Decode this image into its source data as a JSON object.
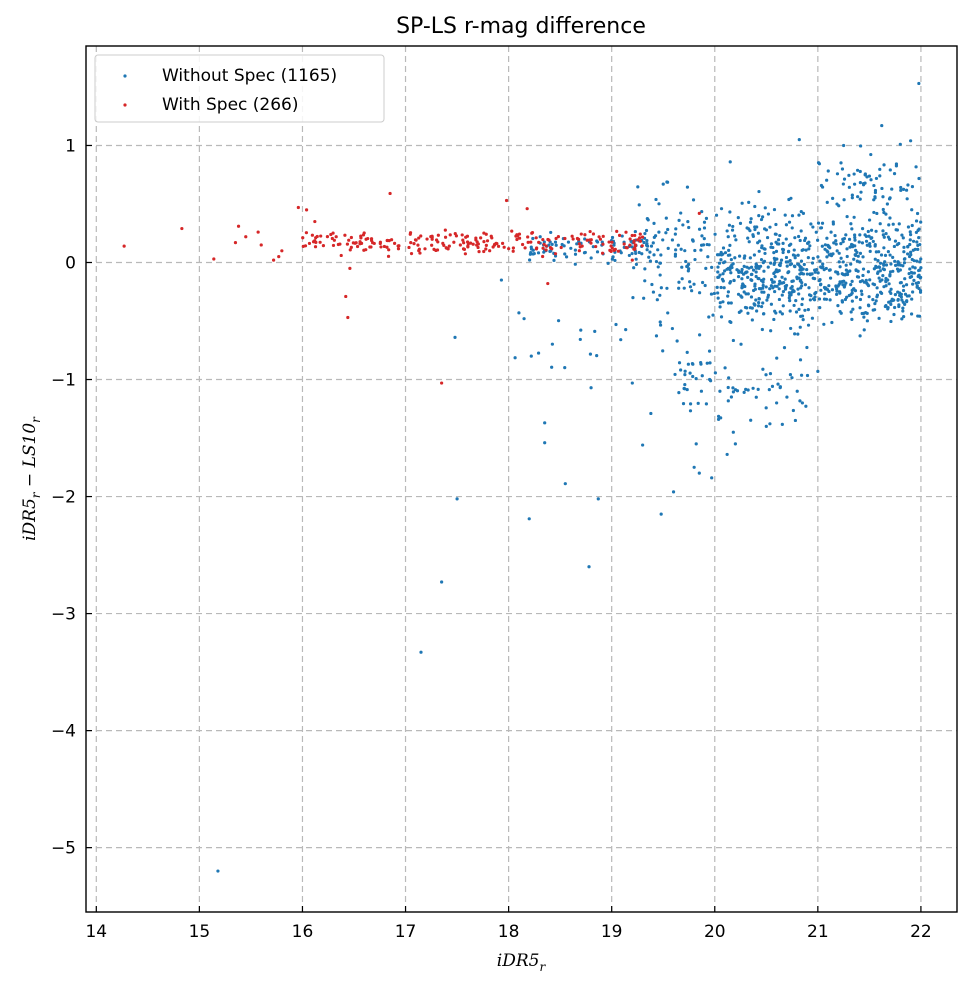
{
  "chart_data": {
    "type": "scatter",
    "title": "SP-LS r-mag difference",
    "xlabel": "iDR5",
    "xlabel_sub": "r",
    "ylabel": "iDR5",
    "ylabel_sub": "r",
    "ylabel_op": " − LS10",
    "ylabel_sub2": "r",
    "xlim": [
      13.9,
      22.35
    ],
    "ylim": [
      -5.55,
      1.85
    ],
    "xticks": [
      14,
      15,
      16,
      17,
      18,
      19,
      20,
      21,
      22
    ],
    "yticks": [
      1,
      0,
      -1,
      -2,
      -3,
      -4,
      -5
    ],
    "ytick_labels": [
      "1",
      "0",
      "−1",
      "−2",
      "−3",
      "−4",
      "−5"
    ],
    "grid": true,
    "legend_position": "top-left",
    "series": [
      {
        "name": "Without Spec (1165)",
        "color": "#1f77b4",
        "clusters": [
          {
            "xrange": [
              19.2,
              22.0
            ],
            "yrange": [
              -0.7,
              0.8
            ],
            "count": 380
          },
          {
            "xrange": [
              20.0,
              22.0
            ],
            "yrange": [
              -0.75,
              0.6
            ],
            "count": 520
          },
          {
            "xrange": [
              18.2,
              19.4
            ],
            "yrange": [
              -0.05,
              0.3
            ],
            "count": 90
          },
          {
            "xrange": [
              21.0,
              22.0
            ],
            "yrange": [
              0.3,
              1.05
            ],
            "count": 60
          },
          {
            "xrange": [
              19.6,
              20.9
            ],
            "yrange": [
              -1.6,
              -0.5
            ],
            "count": 75
          },
          {
            "xrange": [
              18.0,
              20.0
            ],
            "yrange": [
              -1.2,
              -0.3
            ],
            "count": 20
          }
        ],
        "points": [
          {
            "x": 15.18,
            "y": -5.2
          },
          {
            "x": 17.15,
            "y": -3.33
          },
          {
            "x": 17.35,
            "y": -2.73
          },
          {
            "x": 17.5,
            "y": -2.02
          },
          {
            "x": 18.2,
            "y": -2.19
          },
          {
            "x": 18.55,
            "y": -1.89
          },
          {
            "x": 18.78,
            "y": -2.6
          },
          {
            "x": 18.87,
            "y": -2.02
          },
          {
            "x": 19.48,
            "y": -2.15
          },
          {
            "x": 19.6,
            "y": -1.96
          },
          {
            "x": 19.3,
            "y": -1.56
          },
          {
            "x": 18.35,
            "y": -1.54
          },
          {
            "x": 18.35,
            "y": -1.37
          },
          {
            "x": 19.38,
            "y": -1.29
          },
          {
            "x": 17.48,
            "y": -0.64
          },
          {
            "x": 18.22,
            "y": -0.8
          },
          {
            "x": 18.8,
            "y": -1.07
          },
          {
            "x": 19.2,
            "y": -1.03
          },
          {
            "x": 19.82,
            "y": -1.55
          },
          {
            "x": 19.8,
            "y": -1.75
          },
          {
            "x": 19.85,
            "y": -1.8
          },
          {
            "x": 19.97,
            "y": -1.84
          },
          {
            "x": 20.12,
            "y": -1.64
          },
          {
            "x": 20.2,
            "y": -1.55
          },
          {
            "x": 20.18,
            "y": -1.45
          },
          {
            "x": 20.5,
            "y": -1.4
          },
          {
            "x": 20.7,
            "y": -1.15
          },
          {
            "x": 20.6,
            "y": -1.2
          },
          {
            "x": 20.8,
            "y": -1.1
          },
          {
            "x": 20.85,
            "y": -1.2
          },
          {
            "x": 21.0,
            "y": -0.93
          },
          {
            "x": 19.95,
            "y": -1.0
          },
          {
            "x": 20.05,
            "y": -1.1
          },
          {
            "x": 20.1,
            "y": -0.9
          },
          {
            "x": 21.98,
            "y": 1.53
          },
          {
            "x": 21.62,
            "y": 1.17
          },
          {
            "x": 21.9,
            "y": 1.04
          },
          {
            "x": 20.82,
            "y": 1.05
          },
          {
            "x": 21.25,
            "y": 1.0
          },
          {
            "x": 21.8,
            "y": 1.01
          },
          {
            "x": 20.15,
            "y": 0.86
          },
          {
            "x": 19.5,
            "y": 0.67
          },
          {
            "x": 17.93,
            "y": -0.15
          },
          {
            "x": 18.15,
            "y": -0.48
          },
          {
            "x": 18.1,
            "y": -0.43
          }
        ]
      },
      {
        "name": "With Spec (266)",
        "color": "#d62728",
        "clusters": [
          {
            "xrange": [
              16.0,
              19.3
            ],
            "yrange": [
              0.02,
              0.32
            ],
            "count": 240
          }
        ],
        "points": [
          {
            "x": 14.27,
            "y": 0.14
          },
          {
            "x": 14.83,
            "y": 0.29
          },
          {
            "x": 15.14,
            "y": 0.03
          },
          {
            "x": 15.35,
            "y": 0.17
          },
          {
            "x": 15.38,
            "y": 0.31
          },
          {
            "x": 15.45,
            "y": 0.22
          },
          {
            "x": 15.57,
            "y": 0.26
          },
          {
            "x": 15.6,
            "y": 0.15
          },
          {
            "x": 15.72,
            "y": 0.02
          },
          {
            "x": 15.77,
            "y": 0.05
          },
          {
            "x": 15.8,
            "y": 0.1
          },
          {
            "x": 15.96,
            "y": 0.47
          },
          {
            "x": 16.04,
            "y": 0.45
          },
          {
            "x": 16.12,
            "y": 0.35
          },
          {
            "x": 16.85,
            "y": 0.59
          },
          {
            "x": 17.98,
            "y": 0.53
          },
          {
            "x": 18.18,
            "y": 0.46
          },
          {
            "x": 16.42,
            "y": -0.29
          },
          {
            "x": 16.44,
            "y": -0.47
          },
          {
            "x": 16.46,
            "y": -0.05
          },
          {
            "x": 17.35,
            "y": -1.03
          },
          {
            "x": 18.38,
            "y": -0.18
          },
          {
            "x": 19.85,
            "y": 0.42
          },
          {
            "x": 19.2,
            "y": 0.02
          }
        ]
      }
    ]
  }
}
